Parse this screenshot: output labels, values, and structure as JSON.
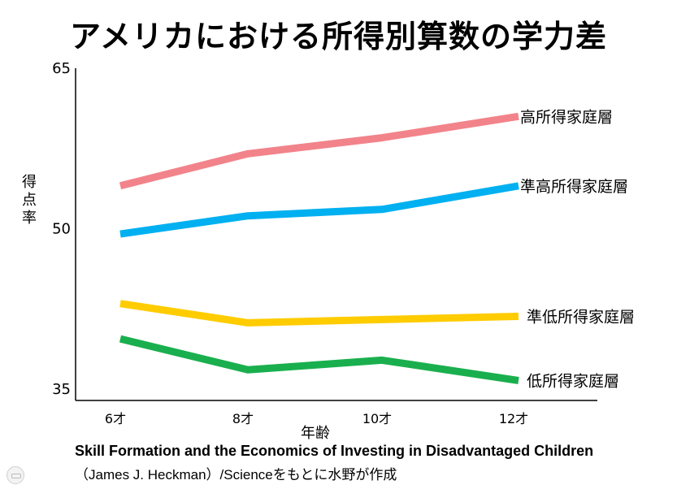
{
  "chart_data": {
    "type": "line",
    "title": "アメリカにおける所得別算数の学力差",
    "ylabel": "得点率",
    "xlabel": "年齢",
    "categories": [
      "6才",
      "8才",
      "10才",
      "12才"
    ],
    "ylim": [
      35,
      65
    ],
    "yticks": [
      "35",
      "50",
      "65"
    ],
    "grid": false,
    "legend": "inline-right",
    "series": [
      {
        "name": "高所得家庭層",
        "values": [
          54,
          57,
          58.5,
          60.5
        ],
        "color": "#f2838a"
      },
      {
        "name": "準高所得家庭層",
        "values": [
          49.5,
          51.2,
          51.8,
          54
        ],
        "color": "#00b0f0"
      },
      {
        "name": "準低所得家庭層",
        "values": [
          43,
          41.2,
          41.5,
          41.8
        ],
        "color": "#ffcc00"
      },
      {
        "name": "低所得家庭層",
        "values": [
          39.7,
          36.8,
          37.7,
          35.8
        ],
        "color": "#1aaf4e"
      }
    ]
  },
  "source": {
    "title": "Skill Formation and the Economics of Investing in Disadvantaged Children",
    "subtitle": "（James J. Heckman）/Scienceをもとに水野が作成"
  },
  "footer": {
    "icon": "slide-indicator-icon"
  }
}
